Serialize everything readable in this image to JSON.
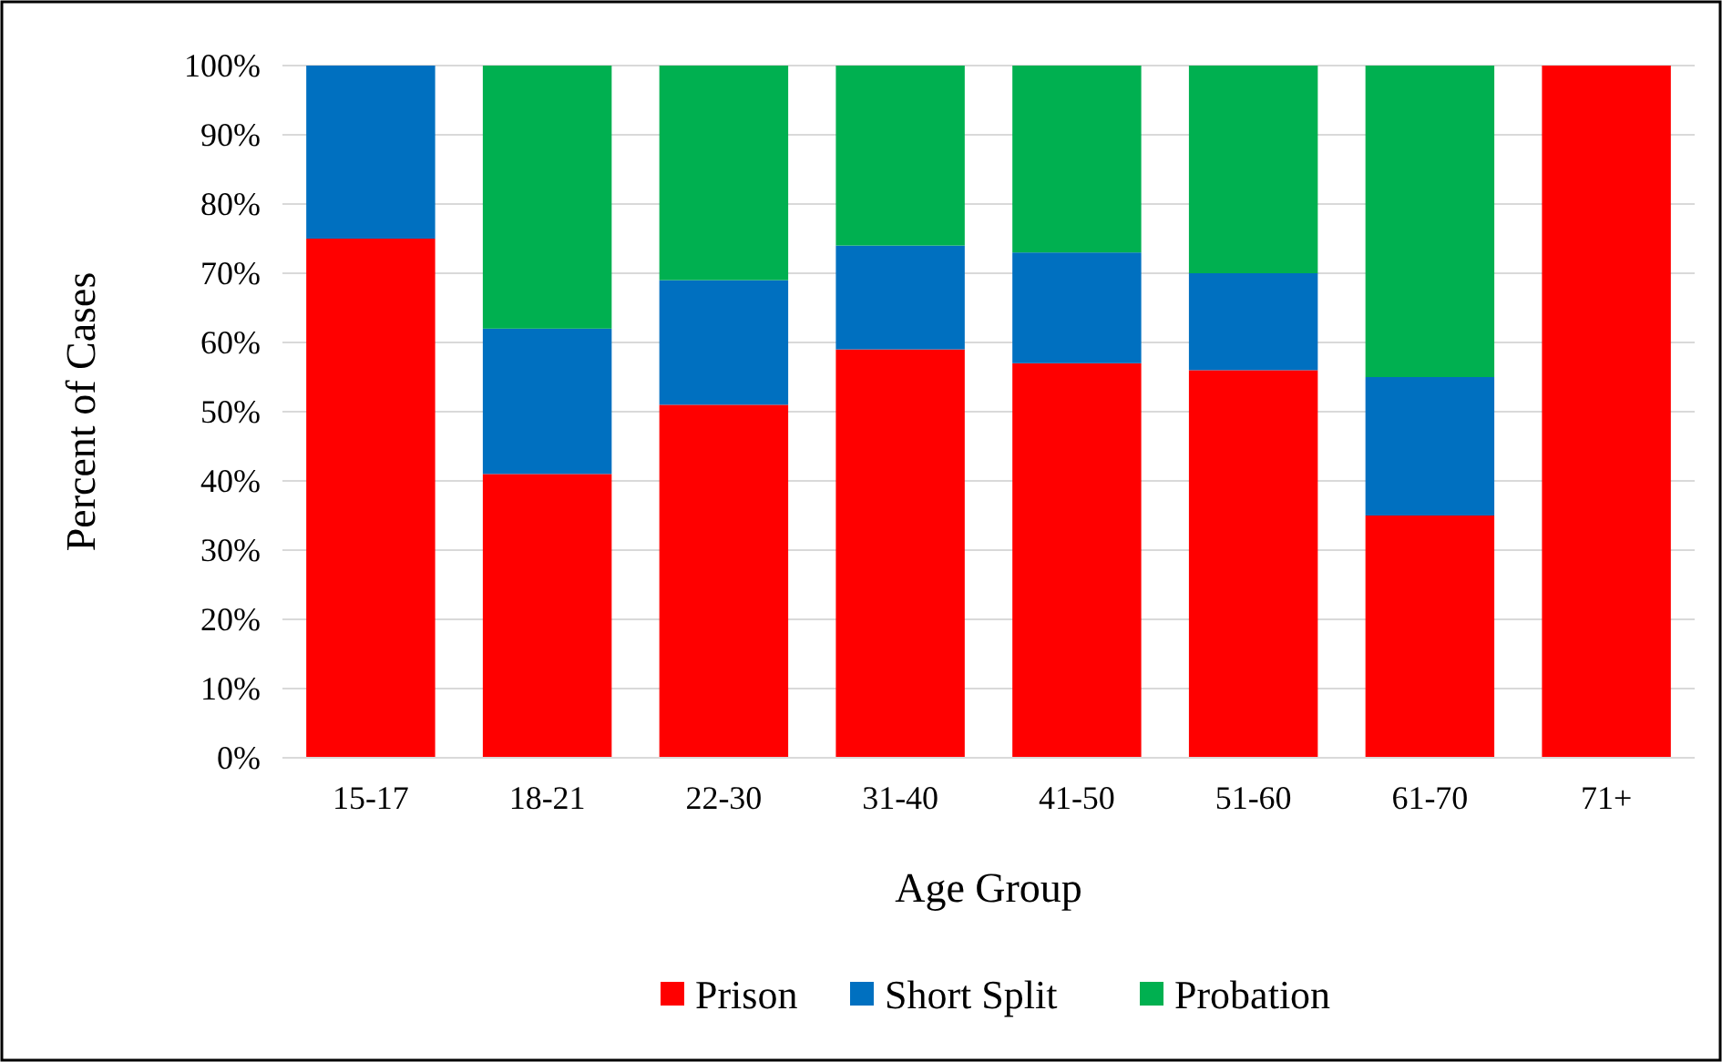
{
  "chart_data": {
    "type": "bar",
    "stacked": true,
    "xlabel": "Age Group",
    "ylabel": "Percent of Cases",
    "categories": [
      "15-17",
      "18-21",
      "22-30",
      "31-40",
      "41-50",
      "51-60",
      "61-70",
      "71+"
    ],
    "series": [
      {
        "name": "Prison",
        "color": "#ff0000",
        "values": [
          75,
          41,
          51,
          59,
          57,
          56,
          35,
          100
        ]
      },
      {
        "name": "Short Split",
        "color": "#0070c0",
        "values": [
          25,
          21,
          18,
          15,
          16,
          14,
          20,
          0
        ]
      },
      {
        "name": "Probation",
        "color": "#00b050",
        "values": [
          0,
          38,
          31,
          26,
          27,
          30,
          45,
          0
        ]
      }
    ],
    "ylim": [
      0,
      100
    ],
    "yticks": [
      {
        "value": 0,
        "label": "0%"
      },
      {
        "value": 10,
        "label": "10%"
      },
      {
        "value": 20,
        "label": "20%"
      },
      {
        "value": 30,
        "label": "30%"
      },
      {
        "value": 40,
        "label": "40%"
      },
      {
        "value": 50,
        "label": "50%"
      },
      {
        "value": 60,
        "label": "60%"
      },
      {
        "value": 70,
        "label": "70%"
      },
      {
        "value": 80,
        "label": "80%"
      },
      {
        "value": 90,
        "label": "90%"
      },
      {
        "value": 100,
        "label": "100%"
      }
    ],
    "grid": "y",
    "legend": "bottom"
  }
}
